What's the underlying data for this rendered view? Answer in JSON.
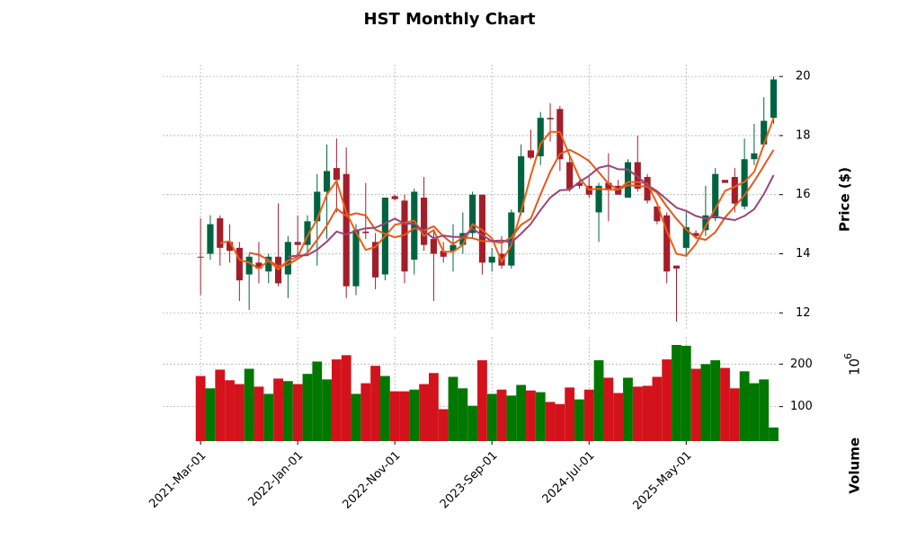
{
  "chart_data": {
    "type": "candlestick",
    "title": "HST Monthly Chart",
    "ylabel": "Price ($)",
    "volume_label": "Volume",
    "volume_scale": {
      "base": "10",
      "exponent": "6"
    },
    "categories": [
      "2021-Mar-01",
      null,
      null,
      null,
      null,
      null,
      null,
      null,
      null,
      null,
      "2022-Jan-01",
      null,
      null,
      null,
      null,
      null,
      null,
      null,
      null,
      null,
      "2022-Nov-01",
      null,
      null,
      null,
      null,
      null,
      null,
      null,
      null,
      null,
      "2023-Sep-01",
      null,
      null,
      null,
      null,
      null,
      null,
      null,
      null,
      null,
      "2024-Jul-01",
      null,
      null,
      null,
      null,
      null,
      null,
      null,
      null,
      null,
      "2025-May-01",
      null,
      null,
      null,
      null,
      null,
      null,
      null,
      null,
      null
    ],
    "open": [
      13.9,
      14.0,
      15.2,
      14.4,
      14.2,
      13.3,
      13.7,
      13.4,
      13.9,
      13.3,
      14.4,
      14.3,
      15.1,
      16.1,
      16.9,
      16.7,
      12.9,
      14.75,
      14.4,
      13.3,
      15.95,
      15.8,
      13.8,
      15.9,
      14.5,
      14.1,
      14.1,
      14.3,
      14.7,
      16.0,
      13.7,
      14.0,
      13.6,
      15.4,
      17.5,
      17.3,
      18.6,
      18.9,
      17.1,
      16.4,
      16.3,
      15.4,
      16.4,
      16.3,
      15.9,
      17.1,
      16.6,
      15.6,
      15.3,
      13.6,
      14.2,
      14.7,
      14.8,
      15.2,
      16.5,
      16.6,
      15.6,
      17.2,
      17.7,
      18.6
    ],
    "high": [
      15.2,
      15.3,
      15.3,
      15.0,
      14.4,
      14.0,
      14.4,
      14.0,
      15.7,
      14.6,
      15.3,
      15.3,
      16.7,
      17.7,
      17.9,
      17.6,
      15.0,
      16.4,
      14.7,
      15.9,
      16.0,
      16.0,
      16.2,
      16.6,
      14.8,
      14.4,
      15.0,
      15.4,
      16.1,
      16.0,
      14.2,
      14.6,
      15.5,
      17.7,
      18.2,
      18.8,
      19.1,
      19.0,
      17.3,
      16.5,
      16.6,
      16.4,
      17.4,
      16.5,
      17.2,
      18.0,
      16.7,
      15.6,
      15.4,
      13.6,
      15.4,
      14.8,
      16.3,
      16.9,
      16.5,
      16.9,
      17.9,
      18.4,
      19.3,
      20.0
    ],
    "low": [
      12.6,
      13.8,
      13.6,
      13.7,
      12.4,
      12.1,
      13.0,
      13.0,
      12.9,
      12.5,
      13.9,
      14.0,
      13.6,
      14.5,
      15.4,
      12.5,
      12.6,
      14.5,
      12.8,
      13.1,
      15.8,
      13.0,
      13.3,
      14.1,
      12.4,
      13.7,
      13.4,
      14.0,
      14.5,
      13.3,
      13.4,
      13.5,
      13.5,
      15.3,
      17.2,
      17.0,
      17.8,
      16.8,
      16.1,
      16.2,
      15.9,
      14.4,
      15.1,
      16.0,
      15.9,
      16.1,
      15.7,
      15.0,
      13.0,
      11.7,
      13.9,
      14.5,
      14.6,
      15.1,
      16.4,
      15.4,
      15.5,
      17.0,
      17.6,
      18.4
    ],
    "close": [
      13.88,
      15.0,
      14.2,
      14.1,
      13.1,
      13.9,
      13.5,
      13.9,
      13.0,
      14.4,
      14.3,
      15.1,
      16.1,
      16.8,
      16.5,
      12.9,
      14.8,
      14.7,
      13.2,
      15.9,
      15.85,
      13.4,
      16.1,
      14.3,
      14.0,
      13.9,
      14.3,
      14.7,
      16.0,
      13.7,
      13.9,
      13.6,
      15.4,
      17.3,
      17.25,
      18.6,
      18.55,
      17.2,
      16.2,
      16.3,
      16.0,
      16.3,
      16.2,
      16.0,
      17.1,
      16.2,
      15.8,
      15.1,
      13.4,
      13.5,
      14.9,
      14.6,
      15.3,
      16.7,
      16.4,
      15.7,
      17.2,
      17.4,
      18.5,
      19.9
    ],
    "volume": [
      172,
      143,
      187,
      162,
      153,
      189,
      147,
      130,
      166,
      160,
      153,
      177,
      206,
      164,
      211,
      221,
      130,
      155,
      196,
      172,
      136,
      136,
      140,
      153,
      179,
      94,
      170,
      143,
      102,
      209,
      130,
      140,
      126,
      151,
      138,
      134,
      111,
      106,
      145,
      117,
      140,
      209,
      168,
      132,
      168,
      147,
      149,
      170,
      211,
      245,
      243,
      189,
      200,
      209,
      191,
      143,
      183,
      155,
      164,
      51
    ],
    "moving_averages": [
      {
        "color": "#f05d16",
        "values": [
          null,
          null,
          14.36,
          14.43,
          13.8,
          13.7,
          13.5,
          13.77,
          13.47,
          13.77,
          13.9,
          14.6,
          15.17,
          16.0,
          16.47,
          15.4,
          14.73,
          14.13,
          14.23,
          14.6,
          14.98,
          15.05,
          15.12,
          14.6,
          14.8,
          14.07,
          14.07,
          14.3,
          15.0,
          14.8,
          14.53,
          13.73,
          14.3,
          15.43,
          16.65,
          17.72,
          18.13,
          18.12,
          17.32,
          16.57,
          16.17,
          16.2,
          16.17,
          16.17,
          16.43,
          16.43,
          16.37,
          15.7,
          14.77,
          14.0,
          13.93,
          14.33,
          14.93,
          15.53,
          16.13,
          16.27,
          16.43,
          16.77,
          17.7,
          18.6
        ]
      },
      {
        "color": "#e4571c",
        "values": [
          null,
          null,
          null,
          null,
          null,
          14.03,
          13.97,
          13.78,
          13.58,
          13.63,
          13.83,
          14.03,
          14.47,
          14.95,
          15.53,
          15.28,
          15.37,
          15.3,
          14.82,
          14.67,
          14.56,
          14.64,
          14.86,
          14.79,
          14.93,
          14.59,
          14.33,
          14.55,
          14.53,
          14.43,
          14.42,
          14.37,
          14.55,
          14.98,
          15.19,
          16.01,
          16.78,
          17.38,
          17.52,
          17.35,
          17.14,
          16.76,
          16.37,
          16.17,
          16.32,
          16.3,
          16.27,
          16.07,
          15.6,
          15.18,
          14.82,
          14.55,
          14.47,
          14.73,
          15.23,
          15.6,
          15.98,
          16.45,
          16.98,
          17.52
        ]
      },
      {
        "color": "#9a4479",
        "values": [
          null,
          null,
          null,
          null,
          null,
          null,
          null,
          null,
          null,
          13.9,
          13.94,
          13.95,
          14.14,
          14.41,
          14.75,
          14.65,
          14.78,
          14.86,
          14.88,
          15.03,
          15.19,
          15.02,
          15.02,
          14.77,
          14.52,
          14.62,
          14.57,
          14.57,
          14.85,
          14.63,
          14.43,
          14.45,
          14.38,
          14.68,
          15.01,
          15.48,
          15.9,
          16.15,
          16.17,
          16.43,
          16.64,
          16.91,
          16.99,
          16.86,
          16.85,
          16.61,
          16.33,
          16.12,
          15.84,
          15.56,
          15.45,
          15.28,
          15.19,
          15.26,
          15.19,
          15.14,
          15.28,
          15.51,
          16.02,
          16.66
        ]
      }
    ],
    "up_color": "#006340",
    "down_color": "#a31e2a",
    "volume_up_color": "#007800",
    "volume_down_color": "#d3121b",
    "xlim": [
      -3.9,
      59.6
    ],
    "ylim": [
      11.4,
      20.4
    ],
    "yticks": [
      12,
      14,
      16,
      18,
      20
    ],
    "volume_ylim": [
      19,
      264
    ],
    "volume_yticks": [
      100,
      200
    ],
    "grid": true
  }
}
